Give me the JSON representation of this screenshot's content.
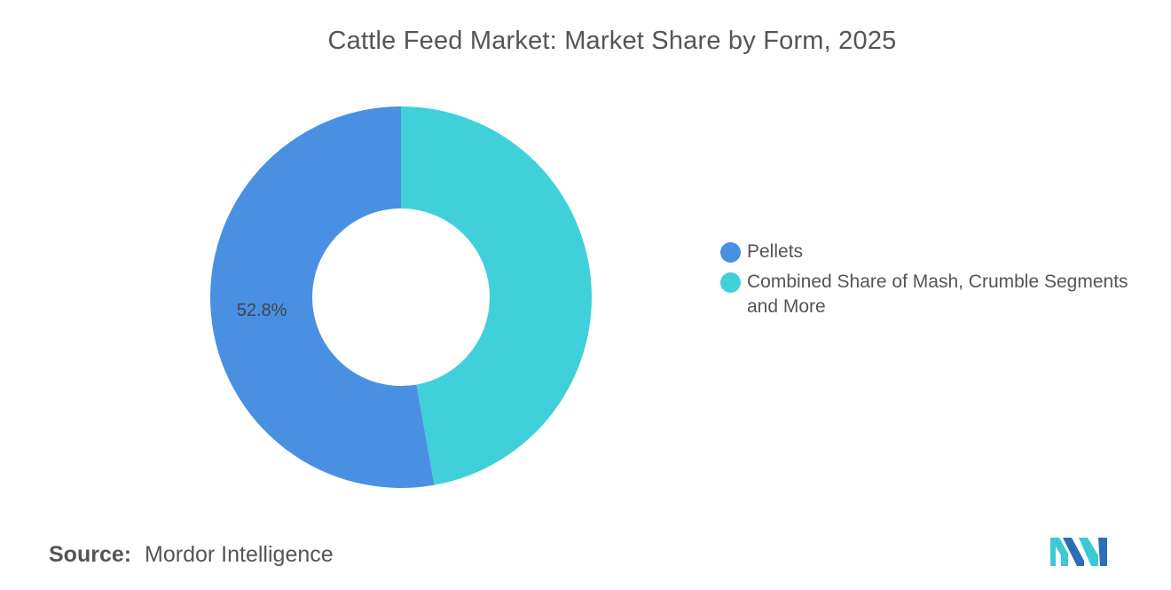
{
  "header": {
    "title": "Cattle Feed Market: Market Share by Form, 2025"
  },
  "chart_data": {
    "type": "pie",
    "title": "Cattle Feed Market: Market Share by Form, 2025",
    "donut": true,
    "legend_position": "right",
    "series": [
      {
        "name": "Pellets",
        "value": 52.8,
        "label": "52.8%",
        "color": "#4a90e2"
      },
      {
        "name": "Combined Share of Mash, Crumble Segments and More",
        "value": 47.2,
        "label": "",
        "color": "#40d0da"
      }
    ]
  },
  "footer": {
    "source_label": "Source:",
    "source_value": "Mordor Intelligence",
    "logo_icon": "mordor-intelligence-logo-icon"
  }
}
